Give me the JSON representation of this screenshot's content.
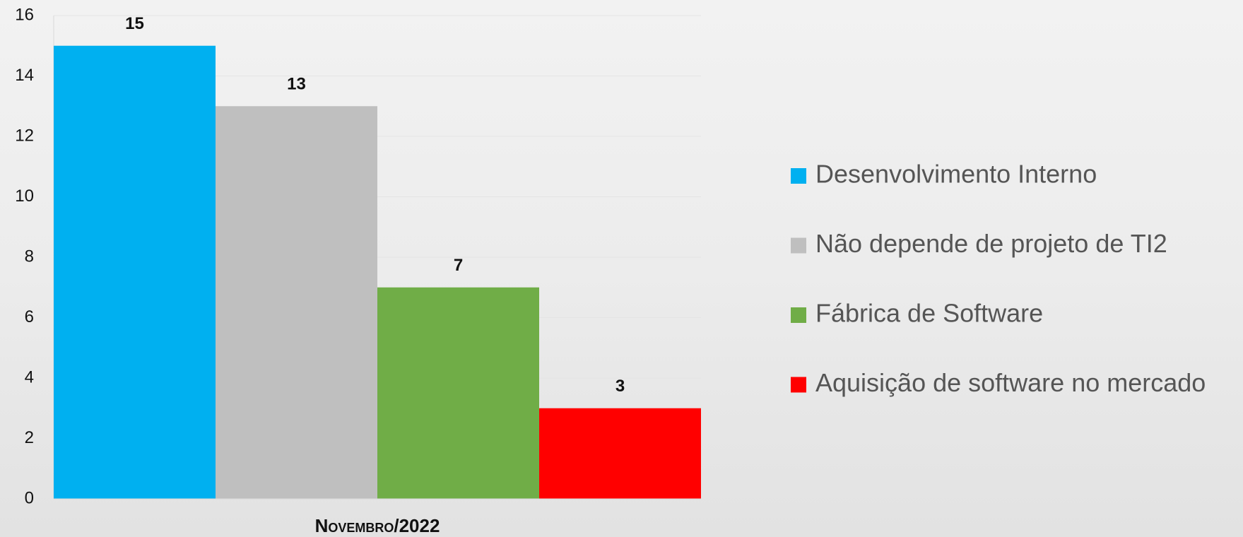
{
  "chart_data": {
    "type": "bar",
    "categories": [
      "Novembro/2022"
    ],
    "series": [
      {
        "name": "Desenvolvimento Interno",
        "color": "#00b0f0",
        "values": [
          15
        ]
      },
      {
        "name": "Não depende de projeto de TI2",
        "color": "#bfbfbf",
        "values": [
          13
        ]
      },
      {
        "name": "Fábrica de Software",
        "color": "#70ad47",
        "values": [
          7
        ]
      },
      {
        "name": "Aquisição de software no mercado",
        "color": "#ff0000",
        "values": [
          3
        ]
      }
    ],
    "ylim": [
      0,
      16
    ],
    "yticks": [
      0,
      2,
      4,
      6,
      8,
      10,
      12,
      14,
      16
    ],
    "grid": true,
    "legend": "right"
  }
}
